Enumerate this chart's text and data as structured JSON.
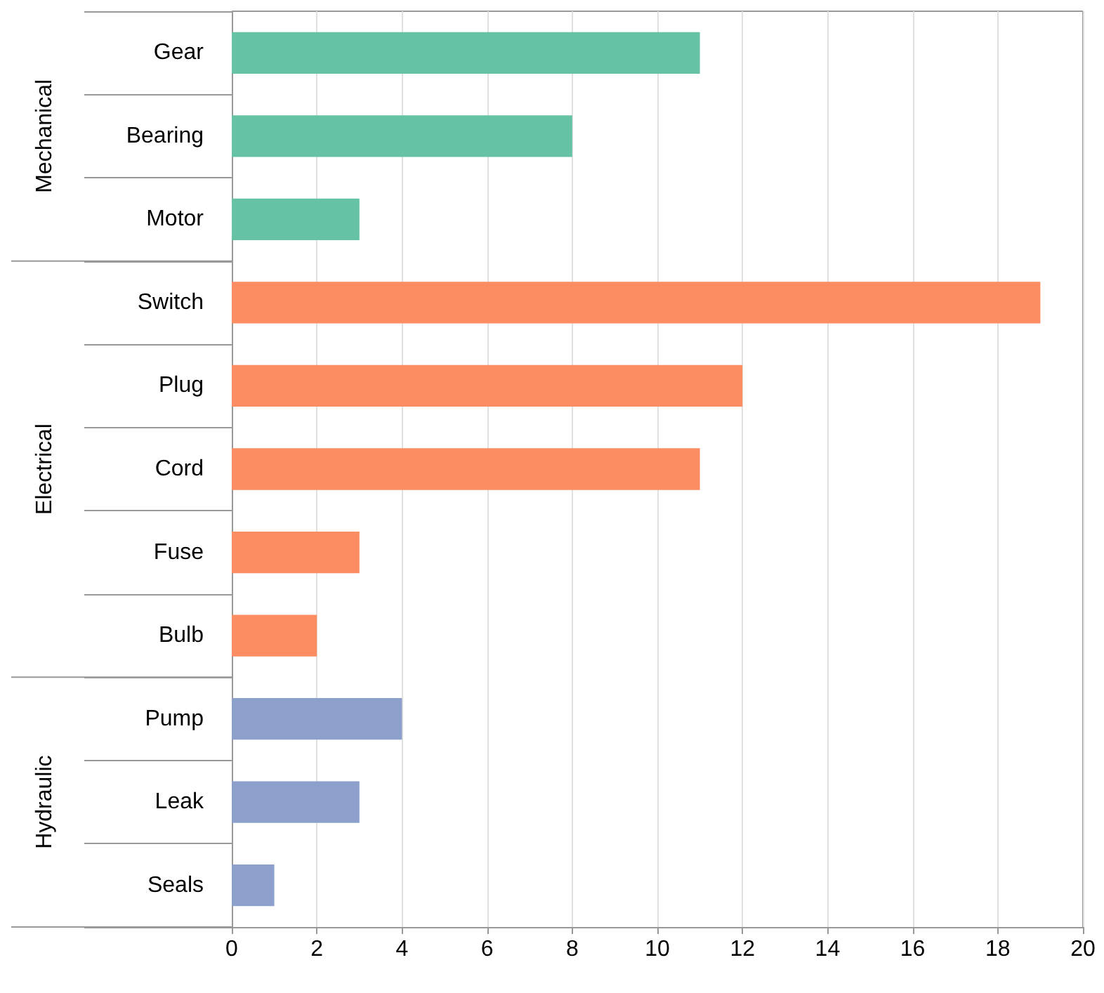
{
  "chart_data": {
    "type": "bar",
    "orientation": "horizontal",
    "categories": [
      "Gear",
      "Bearing",
      "Motor",
      "Switch",
      "Plug",
      "Cord",
      "Fuse",
      "Bulb",
      "Pump",
      "Leak",
      "Seals"
    ],
    "series": [
      {
        "color": "#66c2a5",
        "values": [
          11,
          8,
          3,
          null,
          null,
          null,
          null,
          null,
          null,
          null,
          null
        ]
      },
      {
        "color": "#fc8d62",
        "values": [
          null,
          null,
          null,
          19,
          12,
          11,
          3,
          2,
          null,
          null,
          null
        ]
      },
      {
        "color": "#8da0cb",
        "values": [
          null,
          null,
          null,
          null,
          null,
          null,
          null,
          null,
          4,
          3,
          1
        ]
      }
    ],
    "annotations": [
      "Mechanical",
      "Electrical",
      "Hydraulic"
    ],
    "xlim": [
      0,
      20
    ],
    "xticks": [
      0,
      2,
      4,
      6,
      8,
      10,
      12,
      14,
      16,
      18,
      20
    ],
    "grid": "x"
  }
}
